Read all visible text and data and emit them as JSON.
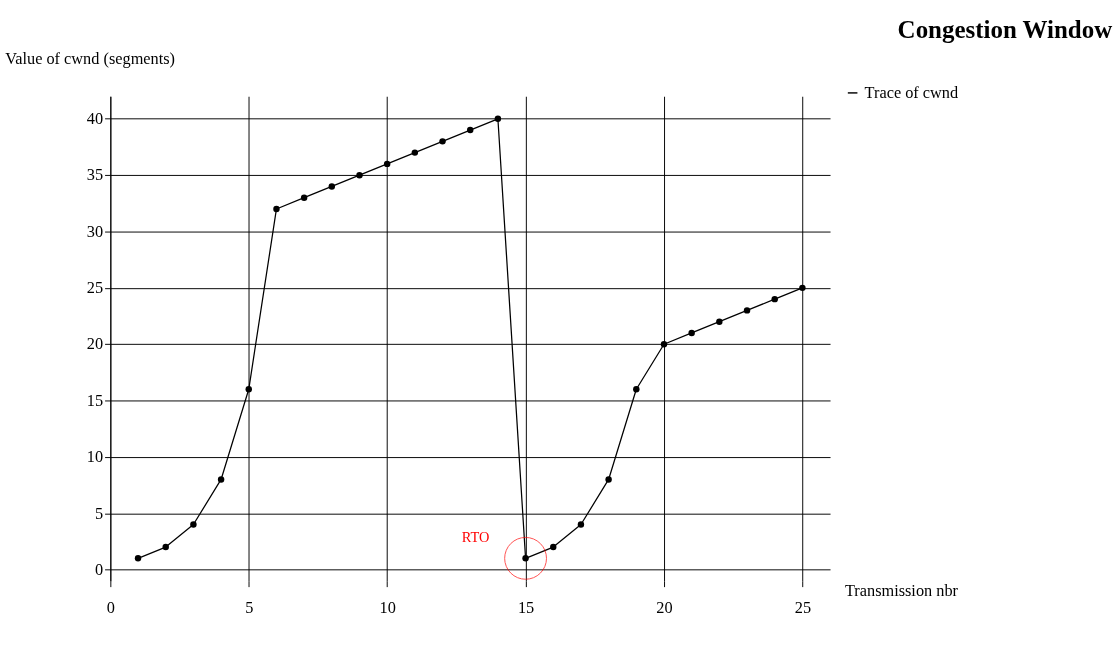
{
  "chart_data": {
    "type": "line",
    "title": "Congestion Window",
    "xlabel": "Transmission nbr",
    "ylabel": "Value of cwnd (segments)",
    "x": [
      1,
      2,
      3,
      4,
      5,
      6,
      7,
      8,
      9,
      10,
      11,
      12,
      13,
      14,
      15,
      16,
      17,
      18,
      19,
      20,
      21,
      22,
      23,
      24,
      25
    ],
    "series": [
      {
        "name": "Trace of cwnd",
        "color": "#000000",
        "values": [
          1,
          2,
          4,
          8,
          16,
          32,
          33,
          34,
          35,
          36,
          37,
          38,
          39,
          40,
          1,
          2,
          4,
          8,
          16,
          20,
          21,
          22,
          23,
          24,
          25
        ]
      }
    ],
    "xlim": [
      0,
      26
    ],
    "ylim": [
      -1,
      42
    ],
    "xticks": [
      0,
      5,
      10,
      15,
      20,
      25
    ],
    "yticks": [
      0,
      5,
      10,
      15,
      20,
      25,
      30,
      35,
      40
    ],
    "grid": true,
    "legend": "top right",
    "marker": "circle",
    "line_style": "solid",
    "annotations": [
      {
        "text": "RTO",
        "x": 15,
        "y": 1
      }
    ]
  }
}
